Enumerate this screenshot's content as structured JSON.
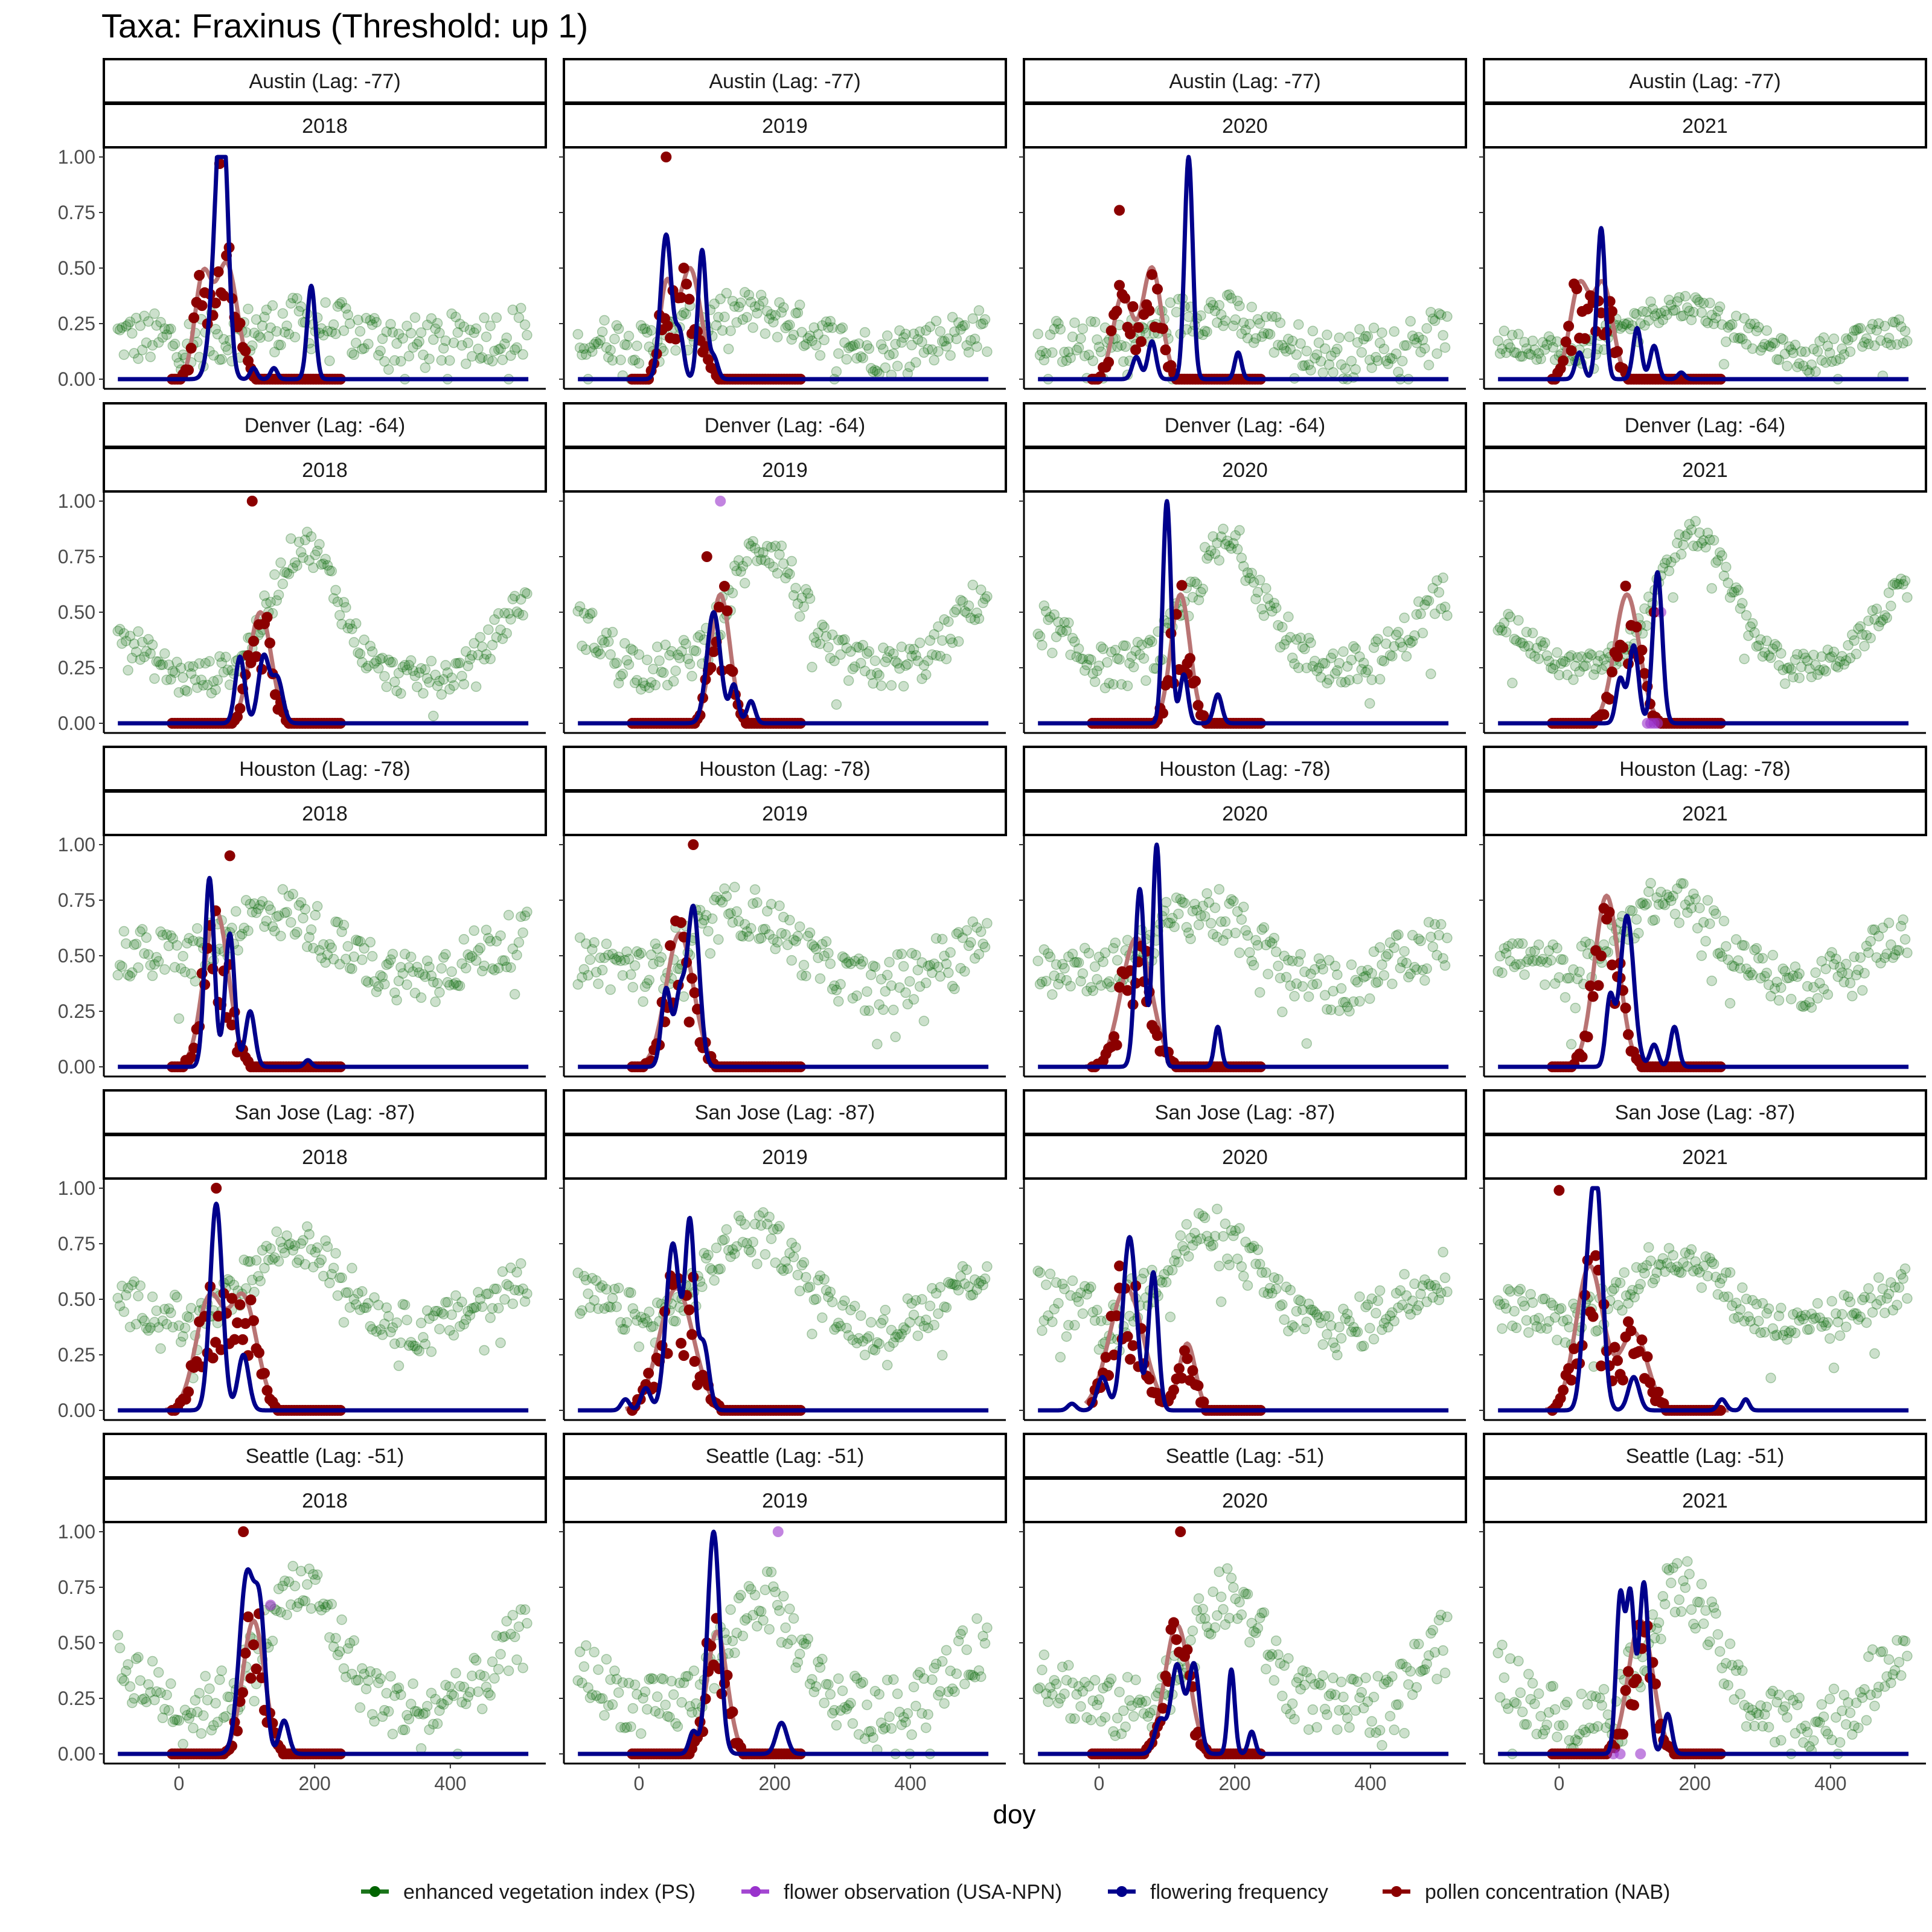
{
  "chart_data": {
    "type": "line",
    "title": "Taxa: Fraxinus (Threshold: up 1)",
    "xlabel": "doy",
    "ylabel": "",
    "xlim": [
      -100,
      530
    ],
    "ylim": [
      0,
      1
    ],
    "x_ticks": [
      0,
      200,
      400
    ],
    "y_ticks": [
      "0.00",
      "0.25",
      "0.50",
      "0.75",
      "1.00"
    ],
    "grid": false,
    "legend_position": "bottom",
    "years": [
      "2018",
      "2019",
      "2020",
      "2021"
    ],
    "cities": [
      {
        "label": "Austin (Lag: -77)"
      },
      {
        "label": "Denver (Lag: -64)"
      },
      {
        "label": "Houston (Lag: -78)"
      },
      {
        "label": "San Jose (Lag: -87)"
      },
      {
        "label": "Seattle (Lag: -51)"
      }
    ],
    "legend": [
      {
        "name": "enhanced vegetation index (PS)",
        "color": "#006400",
        "kind": "points"
      },
      {
        "name": "flower observation (USA-NPN)",
        "color": "#9932CC",
        "kind": "points"
      },
      {
        "name": "flowering frequency",
        "color": "#00008B",
        "kind": "line"
      },
      {
        "name": "pollen concentration (NAB)",
        "color": "#8B0000",
        "kind": "points-line"
      }
    ],
    "panels": [
      {
        "city": "Austin (Lag: -77)",
        "year": "2018",
        "flowering_peaks": [
          [
            65,
            0.85,
            8
          ],
          [
            57,
            0.55,
            10
          ],
          [
            195,
            0.42,
            6
          ],
          [
            110,
            0.05,
            5
          ],
          [
            140,
            0.05,
            5
          ]
        ],
        "pollen_smooth_peaks": [
          [
            35,
            0.44,
            12
          ],
          [
            70,
            0.52,
            16
          ]
        ],
        "pollen_max": [
          60,
          0.97
        ],
        "evi": {
          "base": 0.15,
          "amp": 0.1,
          "peak": 180,
          "width": 120,
          "noise": 0.12
        }
      },
      {
        "city": "Austin (Lag: -77)",
        "year": "2019",
        "flowering_peaks": [
          [
            40,
            0.65,
            8
          ],
          [
            93,
            0.58,
            6
          ],
          [
            60,
            0.2,
            6
          ],
          [
            110,
            0.1,
            6
          ]
        ],
        "pollen_smooth_peaks": [
          [
            40,
            0.4,
            10
          ],
          [
            75,
            0.5,
            16
          ]
        ],
        "pollen_max": [
          40,
          1.0
        ],
        "evi": {
          "base": 0.1,
          "amp": 0.2,
          "peak": 160,
          "width": 130,
          "noise": 0.1
        }
      },
      {
        "city": "Austin (Lag: -77)",
        "year": "2020",
        "flowering_peaks": [
          [
            132,
            1.0,
            6
          ],
          [
            78,
            0.17,
            6
          ],
          [
            55,
            0.1,
            6
          ],
          [
            205,
            0.12,
            5
          ]
        ],
        "pollen_smooth_peaks": [
          [
            35,
            0.38,
            14
          ],
          [
            78,
            0.5,
            14
          ]
        ],
        "pollen_max": [
          30,
          0.76
        ],
        "evi": {
          "base": 0.08,
          "amp": 0.22,
          "peak": 160,
          "width": 130,
          "noise": 0.1
        }
      },
      {
        "city": "Austin (Lag: -77)",
        "year": "2021",
        "flowering_peaks": [
          [
            62,
            0.68,
            6
          ],
          [
            30,
            0.12,
            6
          ],
          [
            115,
            0.23,
            6
          ],
          [
            140,
            0.15,
            6
          ],
          [
            180,
            0.03,
            5
          ]
        ],
        "pollen_smooth_peaks": [
          [
            30,
            0.42,
            14
          ],
          [
            65,
            0.42,
            14
          ]
        ],
        "pollen_max": [
          75,
          0.35
        ],
        "evi": {
          "base": 0.05,
          "amp": 0.28,
          "peak": 180,
          "width": 130,
          "noise": 0.06
        }
      },
      {
        "city": "Denver (Lag: -64)",
        "year": "2018",
        "flowering_peaks": [
          [
            90,
            0.3,
            7
          ],
          [
            125,
            0.3,
            8
          ],
          [
            145,
            0.2,
            8
          ]
        ],
        "pollen_smooth_peaks": [
          [
            120,
            0.5,
            16
          ]
        ],
        "pollen_max": [
          108,
          1.0
        ],
        "evi": {
          "base": 0.2,
          "amp": 0.6,
          "peak": 185,
          "width": 70,
          "noise": 0.08
        }
      },
      {
        "city": "Denver (Lag: -64)",
        "year": "2019",
        "flowering_peaks": [
          [
            110,
            0.5,
            10
          ],
          [
            140,
            0.17,
            6
          ],
          [
            165,
            0.1,
            6
          ]
        ],
        "pollen_smooth_peaks": [
          [
            120,
            0.58,
            14
          ]
        ],
        "pollen_max": [
          100,
          0.75
        ],
        "evi": {
          "base": 0.25,
          "amp": 0.55,
          "peak": 185,
          "width": 70,
          "noise": 0.1
        }
      },
      {
        "city": "Denver (Lag: -64)",
        "year": "2020",
        "flowering_peaks": [
          [
            100,
            1.0,
            6
          ],
          [
            125,
            0.22,
            6
          ],
          [
            175,
            0.13,
            6
          ]
        ],
        "pollen_smooth_peaks": [
          [
            120,
            0.58,
            14
          ]
        ],
        "pollen_max": [
          130,
          0.27
        ],
        "evi": {
          "base": 0.25,
          "amp": 0.55,
          "peak": 190,
          "width": 75,
          "noise": 0.1
        }
      },
      {
        "city": "Denver (Lag: -64)",
        "year": "2021",
        "flowering_peaks": [
          [
            145,
            0.68,
            7
          ],
          [
            110,
            0.35,
            7
          ],
          [
            90,
            0.2,
            6
          ]
        ],
        "pollen_smooth_peaks": [
          [
            100,
            0.58,
            18
          ]
        ],
        "pollen_max": [
          140,
          0.5
        ],
        "evi": {
          "base": 0.25,
          "amp": 0.6,
          "peak": 200,
          "width": 75,
          "noise": 0.06
        }
      },
      {
        "city": "Houston (Lag: -78)",
        "year": "2018",
        "flowering_peaks": [
          [
            45,
            0.85,
            7
          ],
          [
            75,
            0.6,
            7
          ],
          [
            105,
            0.25,
            7
          ],
          [
            190,
            0.03,
            5
          ]
        ],
        "pollen_smooth_peaks": [
          [
            55,
            0.7,
            18
          ]
        ],
        "pollen_max": [
          75,
          0.95
        ],
        "evi": {
          "base": 0.4,
          "amp": 0.3,
          "peak": 140,
          "width": 110,
          "noise": 0.12
        }
      },
      {
        "city": "Houston (Lag: -78)",
        "year": "2019",
        "flowering_peaks": [
          [
            80,
            0.72,
            9
          ],
          [
            40,
            0.35,
            7
          ],
          [
            60,
            0.3,
            7
          ]
        ],
        "pollen_smooth_peaks": [
          [
            60,
            0.6,
            20
          ]
        ],
        "pollen_max": [
          80,
          1.0
        ],
        "evi": {
          "base": 0.35,
          "amp": 0.35,
          "peak": 150,
          "width": 110,
          "noise": 0.12
        }
      },
      {
        "city": "Houston (Lag: -78)",
        "year": "2020",
        "flowering_peaks": [
          [
            85,
            1.0,
            6
          ],
          [
            60,
            0.8,
            7
          ],
          [
            175,
            0.18,
            5
          ]
        ],
        "pollen_smooth_peaks": [
          [
            55,
            0.58,
            22
          ]
        ],
        "pollen_max": [
          70,
          0.52
        ],
        "evi": {
          "base": 0.35,
          "amp": 0.35,
          "peak": 150,
          "width": 110,
          "noise": 0.12
        }
      },
      {
        "city": "Houston (Lag: -78)",
        "year": "2021",
        "flowering_peaks": [
          [
            100,
            0.68,
            10
          ],
          [
            75,
            0.3,
            6
          ],
          [
            170,
            0.18,
            6
          ],
          [
            140,
            0.1,
            6
          ]
        ],
        "pollen_smooth_peaks": [
          [
            70,
            0.77,
            18
          ]
        ],
        "pollen_max": [
          90,
          0.4
        ],
        "evi": {
          "base": 0.35,
          "amp": 0.4,
          "peak": 160,
          "width": 110,
          "noise": 0.1
        }
      },
      {
        "city": "San Jose (Lag: -87)",
        "year": "2018",
        "flowering_peaks": [
          [
            55,
            0.93,
            9
          ],
          [
            95,
            0.25,
            8
          ]
        ],
        "pollen_smooth_peaks": [
          [
            45,
            0.5,
            20
          ],
          [
            95,
            0.5,
            20
          ]
        ],
        "pollen_max": [
          55,
          1.0
        ],
        "evi": {
          "base": 0.35,
          "amp": 0.4,
          "peak": 170,
          "width": 100,
          "noise": 0.1
        }
      },
      {
        "city": "San Jose (Lag: -87)",
        "year": "2019",
        "flowering_peaks": [
          [
            50,
            0.75,
            10
          ],
          [
            75,
            0.82,
            7
          ],
          [
            95,
            0.3,
            8
          ],
          [
            10,
            0.1,
            7
          ],
          [
            -20,
            0.05,
            6
          ]
        ],
        "pollen_smooth_peaks": [
          [
            55,
            0.55,
            25
          ]
        ],
        "pollen_max": [
          80,
          0.6
        ],
        "evi": {
          "base": 0.35,
          "amp": 0.45,
          "peak": 170,
          "width": 100,
          "noise": 0.1
        }
      },
      {
        "city": "San Jose (Lag: -87)",
        "year": "2020",
        "flowering_peaks": [
          [
            45,
            0.78,
            10
          ],
          [
            80,
            0.62,
            7
          ],
          [
            5,
            0.15,
            8
          ],
          [
            -40,
            0.03,
            6
          ]
        ],
        "pollen_smooth_peaks": [
          [
            40,
            0.55,
            25
          ],
          [
            130,
            0.3,
            12
          ]
        ],
        "pollen_max": [
          30,
          0.65
        ],
        "evi": {
          "base": 0.35,
          "amp": 0.45,
          "peak": 160,
          "width": 100,
          "noise": 0.12
        }
      },
      {
        "city": "San Jose (Lag: -87)",
        "year": "2021",
        "flowering_peaks": [
          [
            55,
            1.0,
            9
          ],
          [
            40,
            0.4,
            8
          ],
          [
            110,
            0.15,
            8
          ],
          [
            240,
            0.05,
            6
          ],
          [
            275,
            0.05,
            5
          ]
        ],
        "pollen_smooth_peaks": [
          [
            45,
            0.65,
            20
          ],
          [
            110,
            0.35,
            20
          ]
        ],
        "pollen_max": [
          0,
          0.99
        ],
        "evi": {
          "base": 0.35,
          "amp": 0.35,
          "peak": 170,
          "width": 100,
          "noise": 0.1
        }
      },
      {
        "city": "Seattle (Lag: -51)",
        "year": "2018",
        "flowering_peaks": [
          [
            100,
            0.8,
            11
          ],
          [
            120,
            0.55,
            8
          ],
          [
            155,
            0.15,
            7
          ]
        ],
        "pollen_smooth_peaks": [
          [
            110,
            0.6,
            16
          ]
        ],
        "pollen_max": [
          95,
          1.0
        ],
        "evi": {
          "base": 0.2,
          "amp": 0.55,
          "peak": 180,
          "width": 75,
          "noise": 0.14
        }
      },
      {
        "city": "Seattle (Lag: -51)",
        "year": "2019",
        "flowering_peaks": [
          [
            110,
            1.0,
            9
          ],
          [
            210,
            0.14,
            8
          ],
          [
            80,
            0.1,
            6
          ]
        ],
        "pollen_smooth_peaks": [
          [
            115,
            0.55,
            15
          ]
        ],
        "pollen_max": [
          100,
          0.5
        ],
        "evi": {
          "base": 0.2,
          "amp": 0.5,
          "peak": 180,
          "width": 75,
          "noise": 0.14
        }
      },
      {
        "city": "Seattle (Lag: -51)",
        "year": "2020",
        "flowering_peaks": [
          [
            115,
            0.4,
            9
          ],
          [
            140,
            0.4,
            8
          ],
          [
            195,
            0.38,
            5
          ],
          [
            225,
            0.1,
            5
          ],
          [
            90,
            0.15,
            8
          ]
        ],
        "pollen_smooth_peaks": [
          [
            115,
            0.58,
            18
          ]
        ],
        "pollen_max": [
          120,
          1.0
        ],
        "evi": {
          "base": 0.2,
          "amp": 0.5,
          "peak": 190,
          "width": 75,
          "noise": 0.14
        }
      },
      {
        "city": "Seattle (Lag: -51)",
        "year": "2021",
        "flowering_peaks": [
          [
            90,
            0.7,
            6
          ],
          [
            105,
            0.7,
            6
          ],
          [
            125,
            0.77,
            7
          ],
          [
            160,
            0.18,
            6
          ]
        ],
        "pollen_smooth_peaks": [
          [
            120,
            0.6,
            18
          ]
        ],
        "pollen_max": [
          110,
          0.32
        ],
        "evi": {
          "base": 0.15,
          "amp": 0.6,
          "peak": 180,
          "width": 70,
          "noise": 0.14
        }
      }
    ],
    "npn_observations": [
      {
        "city": "Denver (Lag: -64)",
        "year": "2019",
        "points": [
          [
            120,
            1.0
          ]
        ]
      },
      {
        "city": "Denver (Lag: -64)",
        "year": "2021",
        "points": [
          [
            130,
            0.0
          ],
          [
            135,
            0.0
          ],
          [
            140,
            0.0
          ],
          [
            145,
            0.0
          ],
          [
            150,
            0.5
          ]
        ]
      },
      {
        "city": "Seattle (Lag: -51)",
        "year": "2018",
        "points": [
          [
            135,
            0.67
          ]
        ]
      },
      {
        "city": "Seattle (Lag: -51)",
        "year": "2019",
        "points": [
          [
            205,
            1.0
          ]
        ]
      },
      {
        "city": "Seattle (Lag: -51)",
        "year": "2021",
        "points": [
          [
            80,
            0.0
          ],
          [
            90,
            0.0
          ],
          [
            120,
            0.0
          ]
        ]
      }
    ]
  }
}
